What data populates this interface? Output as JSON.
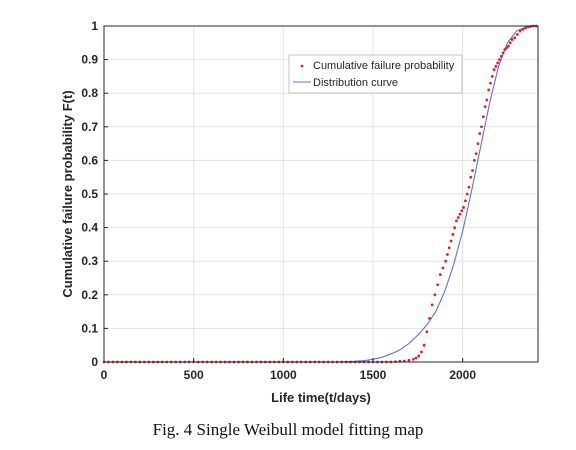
{
  "caption": "Fig. 4 Single Weibull model fitting map",
  "chart_data": {
    "type": "scatter",
    "title": "",
    "xlabel": "Life time(t/days)",
    "ylabel": "Cumulative failure probability F(t)",
    "xlim": [
      0,
      2420
    ],
    "ylim": [
      0,
      1
    ],
    "xticks": [
      0,
      500,
      1000,
      1500,
      2000
    ],
    "yticks": [
      0,
      0.1,
      0.2,
      0.3,
      0.4,
      0.5,
      0.6,
      0.7,
      0.8,
      0.9,
      1
    ],
    "xtick_labels": [
      "0",
      "500",
      "1000",
      "1500",
      "2000"
    ],
    "ytick_labels": [
      "0",
      "0.1",
      "0.2",
      "0.3",
      "0.4",
      "0.5",
      "0.6",
      "0.7",
      "0.8",
      "0.9",
      "1"
    ],
    "grid": true,
    "legend_position": "top-right",
    "colors": {
      "points": "#e0202a",
      "curve": "#6a6fcf",
      "grid": "#e3e3e3",
      "axes": "#262626"
    },
    "series": [
      {
        "name": "Cumulative failure probability",
        "kind": "markers",
        "x": [
          0,
          25,
          50,
          75,
          100,
          125,
          150,
          175,
          200,
          225,
          250,
          275,
          300,
          325,
          350,
          375,
          400,
          425,
          450,
          475,
          500,
          525,
          550,
          575,
          600,
          625,
          650,
          675,
          700,
          725,
          750,
          775,
          800,
          825,
          850,
          875,
          900,
          925,
          950,
          975,
          1000,
          1025,
          1050,
          1075,
          1100,
          1125,
          1150,
          1175,
          1200,
          1225,
          1250,
          1275,
          1300,
          1325,
          1350,
          1375,
          1400,
          1425,
          1450,
          1475,
          1500,
          1525,
          1550,
          1575,
          1600,
          1625,
          1650,
          1675,
          1700,
          1725,
          1740,
          1755,
          1770,
          1785,
          1800,
          1815,
          1830,
          1845,
          1860,
          1875,
          1890,
          1905,
          1915,
          1925,
          1935,
          1945,
          1955,
          1965,
          1975,
          1985,
          1995,
          2005,
          2015,
          2025,
          2035,
          2045,
          2055,
          2065,
          2075,
          2085,
          2095,
          2105,
          2115,
          2125,
          2135,
          2145,
          2155,
          2165,
          2175,
          2185,
          2195,
          2205,
          2215,
          2225,
          2235,
          2245,
          2255,
          2265,
          2275,
          2290,
          2305,
          2320,
          2335,
          2350,
          2365,
          2380,
          2395,
          2410
        ],
        "y": [
          0,
          0,
          0,
          0,
          0,
          0,
          0,
          0,
          0,
          0,
          0,
          0,
          0,
          0,
          0,
          0,
          0,
          0,
          0,
          0,
          0,
          0,
          0,
          0,
          0,
          0,
          0,
          0,
          0,
          0,
          0,
          0,
          0,
          0,
          0,
          0,
          0,
          0,
          0,
          0,
          0,
          0,
          0,
          0,
          0,
          0,
          0,
          0,
          0,
          0,
          0,
          0,
          0,
          0,
          0,
          0,
          0,
          0,
          0,
          0,
          0,
          0,
          0,
          0,
          0,
          0.001,
          0.002,
          0.003,
          0.005,
          0.008,
          0.012,
          0.018,
          0.03,
          0.05,
          0.09,
          0.13,
          0.17,
          0.2,
          0.23,
          0.26,
          0.28,
          0.3,
          0.32,
          0.34,
          0.36,
          0.38,
          0.4,
          0.42,
          0.43,
          0.44,
          0.45,
          0.46,
          0.48,
          0.5,
          0.52,
          0.55,
          0.57,
          0.6,
          0.62,
          0.65,
          0.68,
          0.7,
          0.73,
          0.76,
          0.78,
          0.81,
          0.83,
          0.85,
          0.87,
          0.88,
          0.89,
          0.9,
          0.91,
          0.92,
          0.93,
          0.935,
          0.94,
          0.95,
          0.96,
          0.965,
          0.975,
          0.985,
          0.99,
          0.994,
          0.997,
          0.999,
          1.0,
          1.0
        ]
      },
      {
        "name": "Distribution curve",
        "kind": "line",
        "x": [
          0,
          1000,
          1300,
          1400,
          1450,
          1500,
          1550,
          1600,
          1650,
          1700,
          1750,
          1800,
          1850,
          1900,
          1950,
          2000,
          2050,
          2100,
          2150,
          2200,
          2250,
          2300,
          2350,
          2400,
          2420
        ],
        "y": [
          0,
          0,
          0,
          0.002,
          0.004,
          0.008,
          0.014,
          0.024,
          0.036,
          0.055,
          0.08,
          0.11,
          0.15,
          0.21,
          0.29,
          0.39,
          0.51,
          0.64,
          0.77,
          0.88,
          0.95,
          0.985,
          0.996,
          0.999,
          1.0
        ]
      }
    ]
  }
}
